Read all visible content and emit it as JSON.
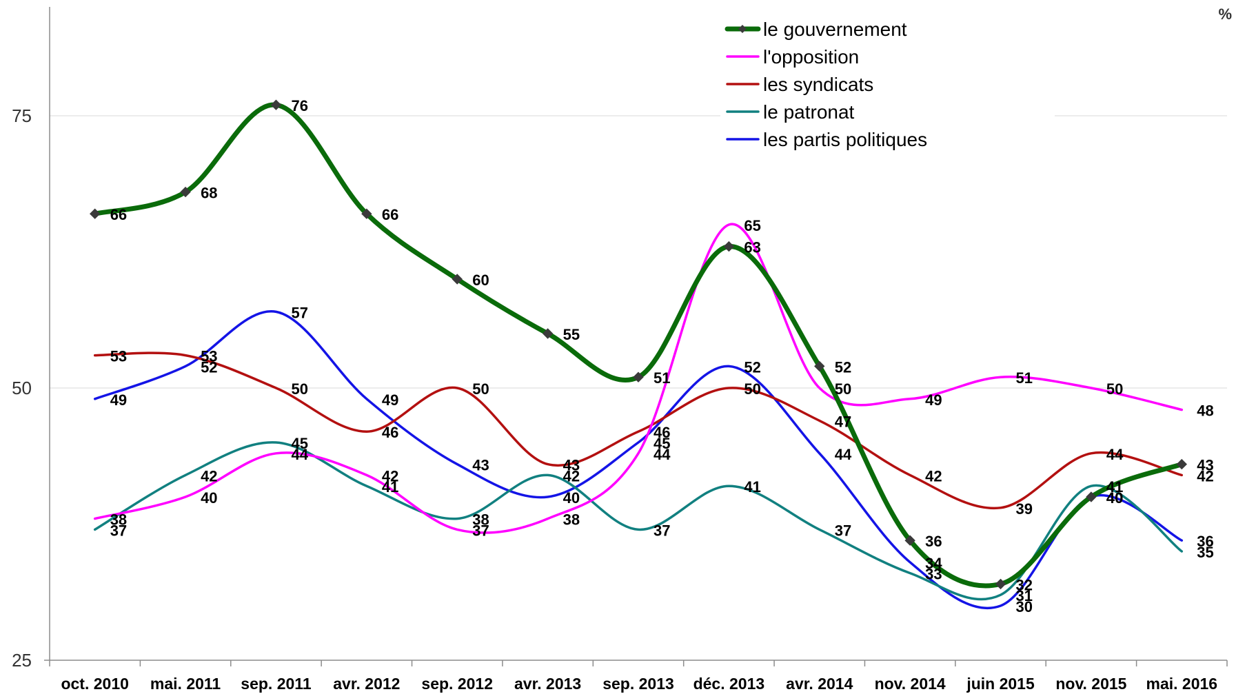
{
  "chart_data": {
    "type": "line",
    "unit_label": "%",
    "categories": [
      "oct. 2010",
      "mai. 2011",
      "sep. 2011",
      "avr. 2012",
      "sep. 2012",
      "avr. 2013",
      "sep. 2013",
      "déc. 2013",
      "avr. 2014",
      "nov. 2014",
      "juin 2015",
      "nov. 2015",
      "mai. 2016"
    ],
    "ylim": [
      25,
      85
    ],
    "yticks": [
      25,
      50,
      75
    ],
    "grid": true,
    "legend_position": "top-right",
    "series": [
      {
        "name": "le gouvernement",
        "color": "#0a6b0a",
        "marker": "diamond",
        "values": [
          66,
          68,
          76,
          66,
          60,
          55,
          51,
          63,
          52,
          36,
          32,
          40,
          43
        ]
      },
      {
        "name": "l'opposition",
        "color": "#ff00ff",
        "values": [
          38,
          40,
          44,
          42,
          37,
          38,
          44,
          65,
          50,
          49,
          51,
          50,
          48
        ]
      },
      {
        "name": "les syndicats",
        "color": "#b31010",
        "values": [
          53,
          53,
          50,
          46,
          50,
          43,
          46,
          50,
          47,
          42,
          39,
          44,
          42
        ]
      },
      {
        "name": "le patronat",
        "color": "#118080",
        "values": [
          37,
          42,
          45,
          41,
          38,
          42,
          37,
          41,
          37,
          33,
          31,
          41,
          35
        ]
      },
      {
        "name": "les partis politiques",
        "color": "#1414e6",
        "values": [
          49,
          52,
          57,
          49,
          43,
          40,
          45,
          52,
          44,
          34,
          30,
          40,
          36
        ]
      }
    ]
  }
}
